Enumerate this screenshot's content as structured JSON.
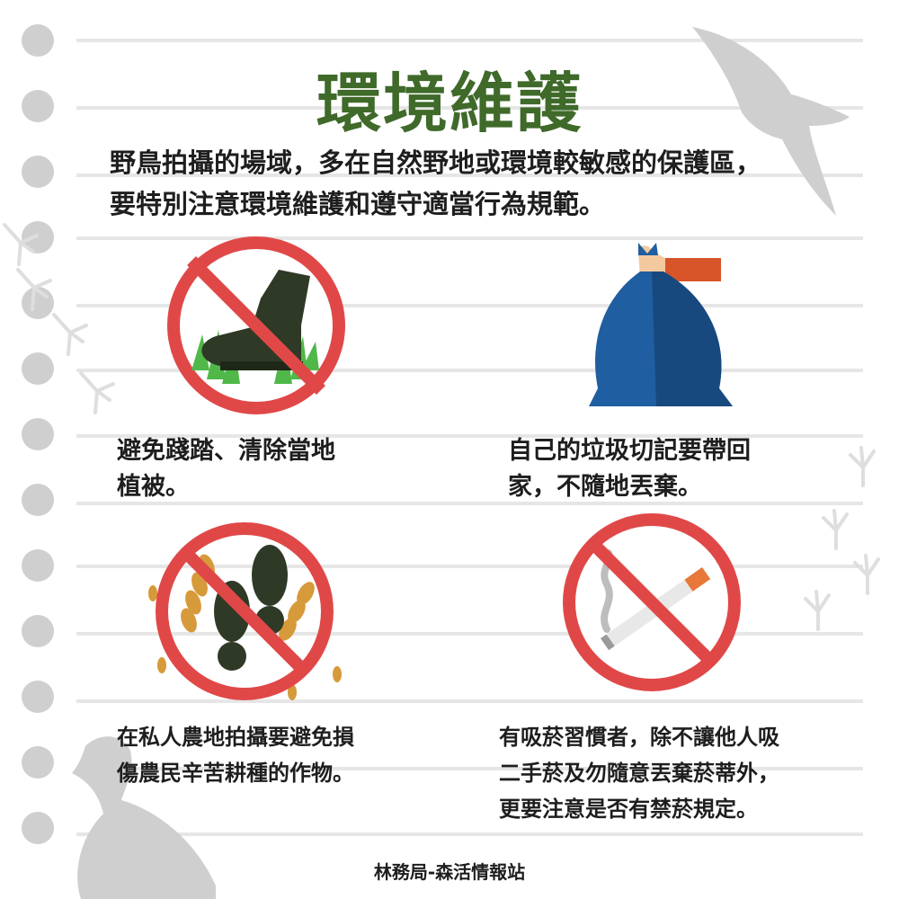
{
  "title": "環境維護",
  "intro": {
    "line1": "野鳥拍攝的場域，多在自然野地或環境較敏感的保護區，",
    "line2": "要特別注意環境維護和遵守適當行為規範。"
  },
  "items": [
    {
      "icon": "no-trampling-icon",
      "lines": [
        "避免踐踏、清除當地",
        "植被。"
      ]
    },
    {
      "icon": "trash-bag-icon",
      "lines": [
        "自己的垃圾切記要帶回",
        "家，不隨地丟棄。"
      ]
    },
    {
      "icon": "no-walking-on-crops-icon",
      "lines": [
        "在私人農地拍攝要避免損",
        "傷農民辛苦耕種的作物。"
      ]
    },
    {
      "icon": "no-smoking-icon",
      "lines": [
        "有吸菸習慣者，除不讓他人吸",
        "二手菸及勿隨意丟棄菸蒂外，",
        "更要注意是否有禁菸規定。"
      ]
    }
  ],
  "footer": "林務局-森活情報站",
  "colors": {
    "title_green": "#3f6a2a",
    "prohibition_red": "#e04848",
    "bag_blue": "#1f5ea0",
    "background_gray": "#cfcfcf"
  }
}
